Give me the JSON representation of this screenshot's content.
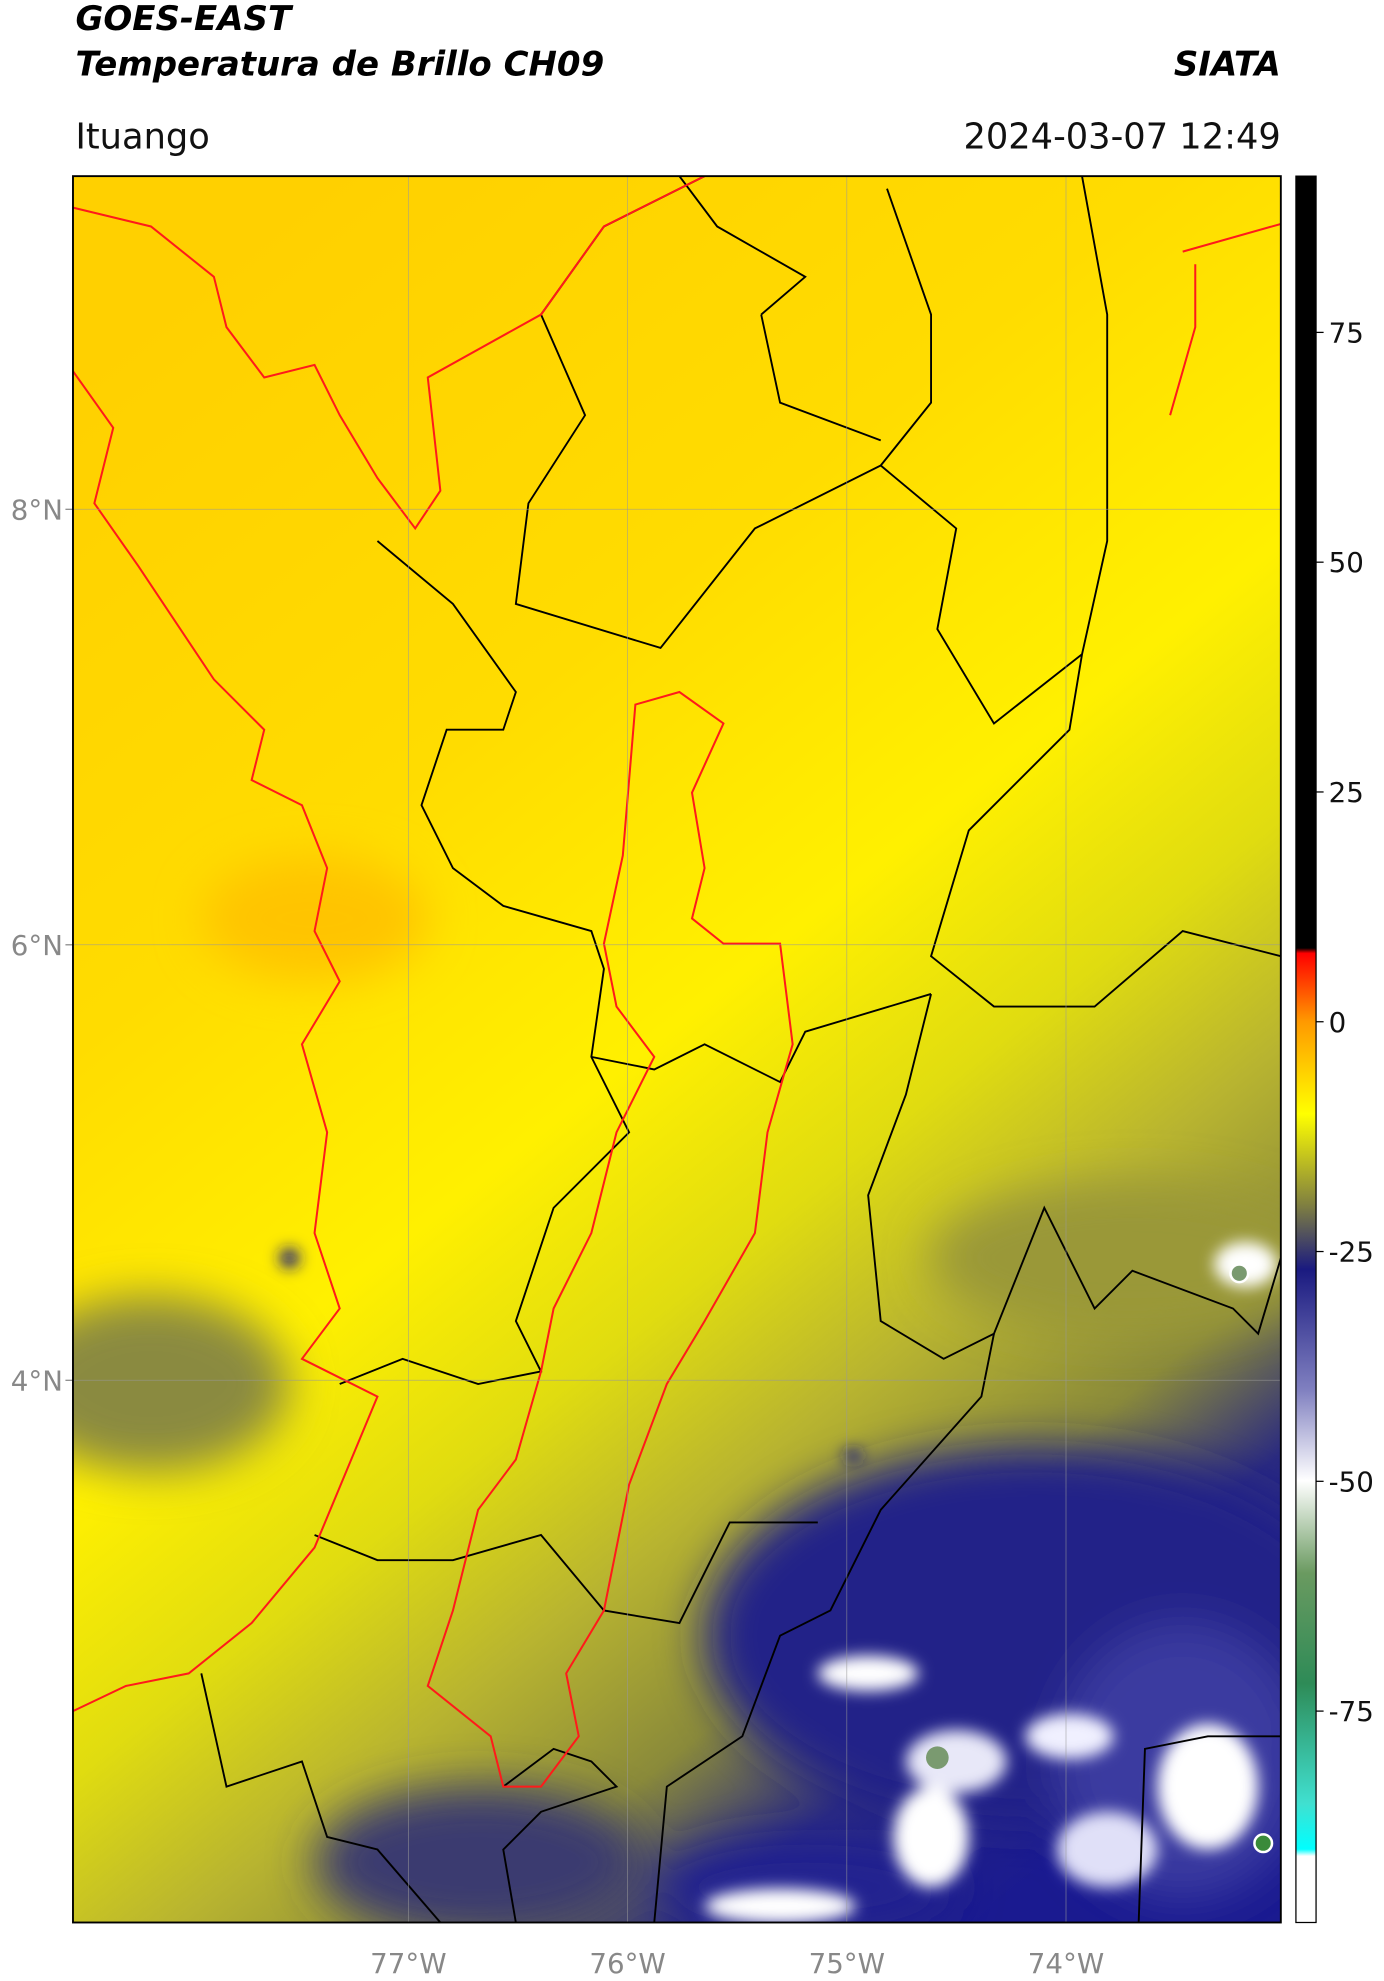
{
  "header": {
    "title_line1": "GOES-EAST",
    "title_line2": "Temperatura de Brillo CH09",
    "source": "SIATA",
    "region": "Ituango",
    "timestamp": "2024-03-07 12:49"
  },
  "map": {
    "lonlim": [
      -78.53,
      -73.02
    ],
    "latlim": [
      1.51,
      9.53
    ],
    "lon_ticks": [
      {
        "value": -77,
        "label": "77°W"
      },
      {
        "value": -76,
        "label": "76°W"
      },
      {
        "value": -75,
        "label": "75°W"
      },
      {
        "value": -74,
        "label": "74°W"
      }
    ],
    "lat_ticks": [
      {
        "value": 8,
        "label": "8°N"
      },
      {
        "value": 6,
        "label": "6°N"
      },
      {
        "value": 4,
        "label": "4°N"
      }
    ]
  },
  "colorbar": {
    "range": [
      -98,
      92
    ],
    "ticks": [
      75,
      50,
      25,
      0,
      -25,
      -50,
      -75
    ]
  }
}
